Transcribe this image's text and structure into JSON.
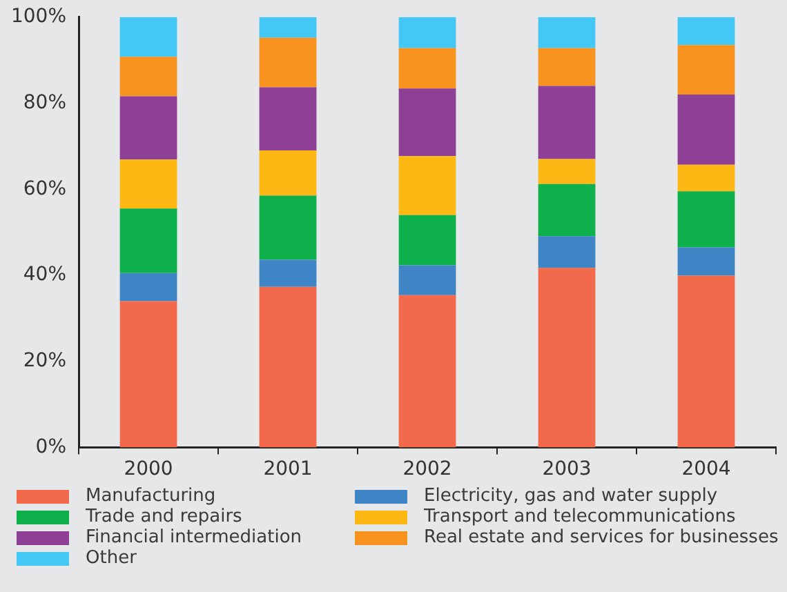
{
  "chart_data": {
    "type": "bar",
    "stacked": true,
    "categories": [
      "2000",
      "2001",
      "2002",
      "2003",
      "2004"
    ],
    "series": [
      {
        "name": "Manufacturing",
        "color": "#f2694b",
        "values": [
          34.0,
          37.3,
          35.4,
          41.7,
          39.9
        ]
      },
      {
        "name": "Electricity, gas and water supply",
        "color": "#3f85c6",
        "values": [
          6.5,
          6.3,
          6.9,
          7.4,
          6.6
        ]
      },
      {
        "name": "Trade and repairs",
        "color": "#0db04b",
        "values": [
          15.0,
          14.9,
          11.7,
          12.1,
          13.0
        ]
      },
      {
        "name": "Transport and telecommunications",
        "color": "#feb814",
        "values": [
          11.4,
          10.5,
          13.7,
          5.8,
          6.2
        ]
      },
      {
        "name": "Financial intermediation",
        "color": "#8e3f96",
        "values": [
          14.7,
          14.7,
          15.7,
          17.0,
          16.3
        ]
      },
      {
        "name": "Real estate and services for businesses",
        "color": "#f7931e",
        "values": [
          9.2,
          11.5,
          9.4,
          8.8,
          11.5
        ]
      },
      {
        "name": "Other",
        "color": "#43c8f5",
        "values": [
          9.2,
          4.8,
          7.2,
          7.2,
          6.5
        ]
      }
    ],
    "ylim": [
      0,
      100
    ],
    "yticks": [
      {
        "value": 0,
        "label": "0%"
      },
      {
        "value": 20,
        "label": "20%"
      },
      {
        "value": 40,
        "label": "40%"
      },
      {
        "value": 60,
        "label": "60%"
      },
      {
        "value": 80,
        "label": "80%"
      },
      {
        "value": 100,
        "label": "100%"
      }
    ],
    "grid": false,
    "legend": "bottom"
  }
}
